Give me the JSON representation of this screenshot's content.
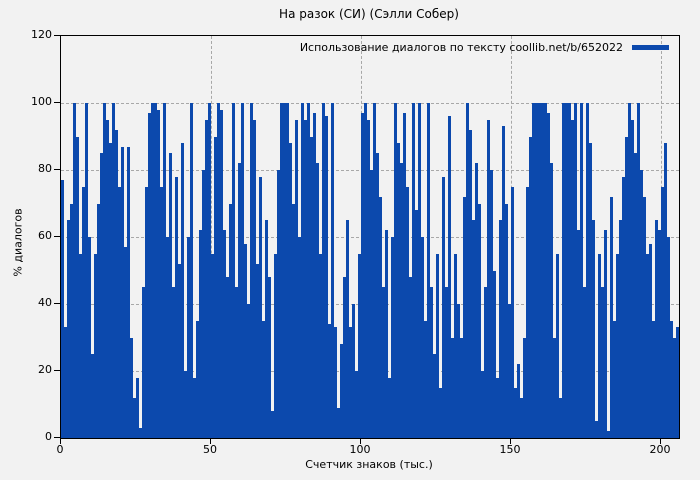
{
  "title": "На разок (СИ) (Сэлли Собер)",
  "legend": {
    "label": "Использование диалогов по тексту coollib.net/b/652022"
  },
  "axes": {
    "y_label": "% диалогов",
    "x_label": "Счетчик знаков (тыс.)",
    "y_ticks": [
      0,
      20,
      40,
      60,
      80,
      100,
      120
    ],
    "x_ticks": [
      0,
      50,
      100,
      150,
      200
    ]
  },
  "colors": {
    "series": "#0c49ad",
    "background": "#f2f2f2",
    "grid": "#a8a8a8",
    "frame": "#000000"
  },
  "chart_data": {
    "type": "bar",
    "style": "filled-impulses",
    "title": "На разок (СИ) (Сэлли Собер)",
    "series_name": "Использование диалогов по тексту coollib.net/b/652022",
    "xlabel": "Счетчик знаков (тыс.)",
    "ylabel": "% диалогов",
    "xlim": [
      0,
      206
    ],
    "ylim": [
      0,
      120
    ],
    "grid": true,
    "legend_position": "top-right",
    "x_start": 0,
    "x_step": 1,
    "values": [
      77,
      33,
      65,
      70,
      100,
      90,
      55,
      75,
      100,
      60,
      25,
      55,
      70,
      85,
      100,
      95,
      88,
      100,
      92,
      75,
      87,
      57,
      87,
      30,
      12,
      18,
      3,
      45,
      75,
      97,
      100,
      100,
      98,
      75,
      100,
      60,
      85,
      45,
      78,
      52,
      88,
      20,
      60,
      100,
      18,
      35,
      62,
      80,
      95,
      100,
      55,
      90,
      100,
      98,
      62,
      48,
      70,
      100,
      45,
      82,
      100,
      58,
      40,
      100,
      95,
      52,
      78,
      35,
      65,
      48,
      8,
      55,
      80,
      100,
      100,
      100,
      88,
      70,
      95,
      60,
      100,
      95,
      100,
      90,
      97,
      82,
      55,
      100,
      96,
      34,
      100,
      33,
      9,
      28,
      48,
      65,
      33,
      40,
      20,
      55,
      97,
      100,
      95,
      80,
      100,
      85,
      72,
      45,
      62,
      18,
      60,
      100,
      88,
      82,
      97,
      75,
      48,
      100,
      68,
      100,
      60,
      35,
      100,
      45,
      25,
      55,
      15,
      78,
      45,
      96,
      30,
      55,
      40,
      30,
      72,
      100,
      92,
      65,
      82,
      70,
      20,
      45,
      95,
      80,
      50,
      18,
      65,
      93,
      70,
      40,
      75,
      15,
      22,
      12,
      30,
      75,
      90,
      100,
      100,
      100,
      100,
      100,
      97,
      82,
      30,
      55,
      12,
      100,
      100,
      100,
      95,
      100,
      62,
      100,
      45,
      100,
      88,
      65,
      5,
      55,
      45,
      62,
      2,
      72,
      35,
      55,
      65,
      78,
      90,
      100,
      95,
      85,
      100,
      80,
      72,
      55,
      58,
      35,
      65,
      62,
      75,
      88,
      60,
      35,
      30,
      33
    ]
  }
}
